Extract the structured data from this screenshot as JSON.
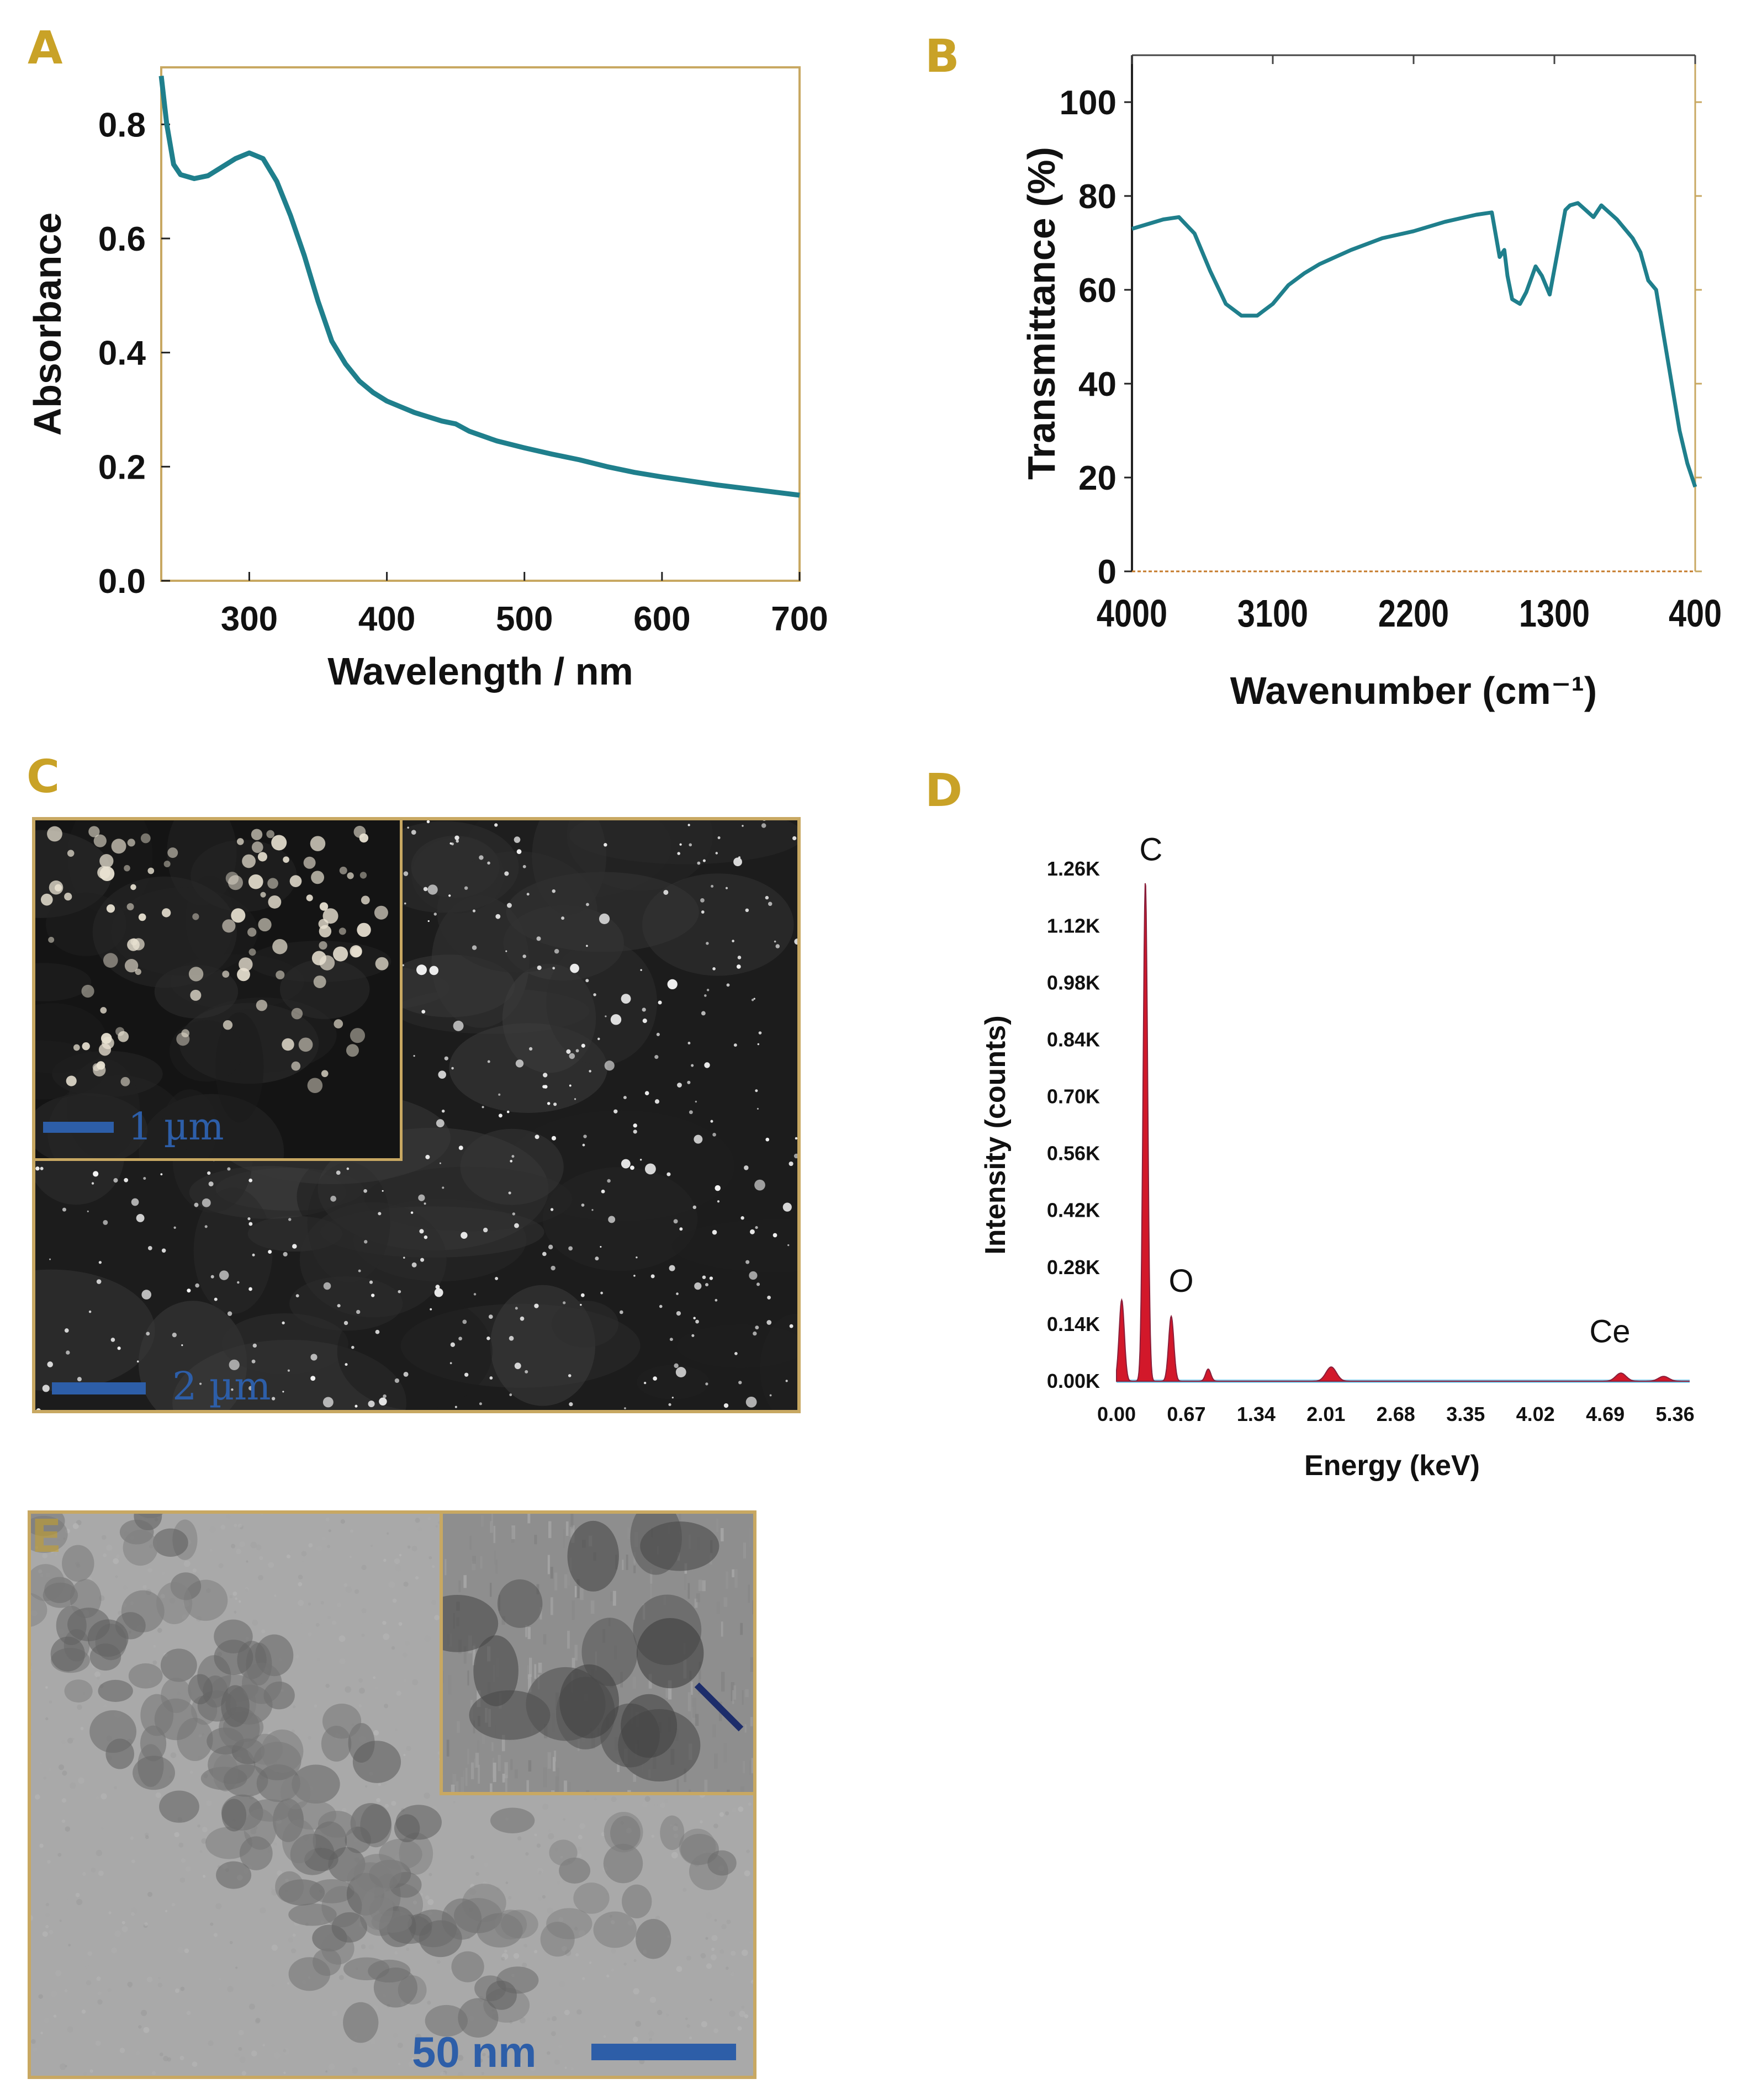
{
  "figure": {
    "panels": {
      "A": "A",
      "B": "B",
      "C": "C",
      "D": "D",
      "E": "E"
    },
    "colors": {
      "panel_label": "#c9a227",
      "frame": "#c8a862",
      "curve": "#1f7f8c",
      "scale_bar": "#2d5ea8",
      "eds_peak": "#d2182a",
      "eds_baseline": "#7ec8e8"
    }
  },
  "chart_data": [
    {
      "id": "A",
      "type": "line",
      "title": "",
      "xlabel": "Wavelength / nm",
      "ylabel": "Absorbance",
      "xlim": [
        236,
        700
      ],
      "ylim": [
        0.0,
        0.9
      ],
      "xticks": [
        300,
        400,
        500,
        600,
        700
      ],
      "yticks": [
        0.0,
        0.2,
        0.4,
        0.6,
        0.8
      ],
      "ytick_labels": [
        "0.0",
        "0.2",
        "0.4",
        "0.6",
        "0.8"
      ],
      "x": [
        236,
        240,
        245,
        250,
        260,
        270,
        280,
        290,
        300,
        310,
        320,
        330,
        340,
        350,
        360,
        370,
        380,
        390,
        400,
        420,
        440,
        450,
        460,
        480,
        500,
        520,
        540,
        560,
        580,
        600,
        620,
        640,
        660,
        680,
        700
      ],
      "y": [
        0.885,
        0.8,
        0.73,
        0.712,
        0.705,
        0.71,
        0.725,
        0.74,
        0.75,
        0.74,
        0.7,
        0.64,
        0.57,
        0.49,
        0.42,
        0.38,
        0.35,
        0.33,
        0.315,
        0.295,
        0.28,
        0.275,
        0.262,
        0.245,
        0.233,
        0.222,
        0.212,
        0.2,
        0.19,
        0.182,
        0.175,
        0.168,
        0.162,
        0.156,
        0.15
      ]
    },
    {
      "id": "B",
      "type": "line",
      "title": "",
      "xlabel": "Wavenumber (cm⁻¹)",
      "ylabel": "Transmittance (%)",
      "xlim": [
        4000,
        400
      ],
      "ylim": [
        0,
        110
      ],
      "xticks": [
        4000,
        3100,
        2200,
        1300,
        400
      ],
      "yticks": [
        0,
        20,
        40,
        60,
        80,
        100
      ],
      "x": [
        4000,
        3800,
        3700,
        3600,
        3500,
        3400,
        3300,
        3200,
        3100,
        3000,
        2900,
        2800,
        2600,
        2400,
        2200,
        2000,
        1800,
        1700,
        1650,
        1620,
        1600,
        1570,
        1520,
        1480,
        1420,
        1380,
        1330,
        1280,
        1230,
        1200,
        1150,
        1100,
        1050,
        1000,
        900,
        800,
        750,
        700,
        650,
        600,
        550,
        500,
        450,
        400
      ],
      "y": [
        73,
        75,
        75.5,
        72,
        64,
        57,
        54.5,
        54.5,
        57,
        61,
        63.5,
        65.5,
        68.5,
        71,
        72.5,
        74.5,
        76,
        76.5,
        67,
        68.5,
        63,
        58,
        57,
        59.5,
        65,
        63,
        59,
        68,
        77,
        78,
        78.5,
        77,
        75.5,
        78,
        75,
        71,
        68,
        62,
        60,
        50,
        40,
        30,
        23,
        18
      ]
    },
    {
      "id": "D",
      "type": "area",
      "title": "",
      "xlabel": "Energy (keV)",
      "ylabel": "Intensity (counts)",
      "xlim": [
        0.0,
        5.5
      ],
      "ylim": [
        0,
        1.32
      ],
      "xticks": [
        0.0,
        0.67,
        1.34,
        2.01,
        2.68,
        3.35,
        4.02,
        4.69,
        5.36
      ],
      "xtick_labels": [
        "0.00",
        "0.67",
        "1.34",
        "2.01",
        "2.68",
        "3.35",
        "4.02",
        "4.69",
        "5.36"
      ],
      "yticks": [
        0.0,
        0.14,
        0.28,
        0.42,
        0.56,
        0.7,
        0.84,
        0.98,
        1.12,
        1.26
      ],
      "ytick_labels": [
        "0.00K",
        "0.14K",
        "0.28K",
        "0.42K",
        "0.56K",
        "0.70K",
        "0.84K",
        "0.98K",
        "1.12K",
        "1.26K"
      ],
      "peaks": [
        {
          "label": "C",
          "energy": 0.277,
          "intensity": 1.23
        },
        {
          "label": "O",
          "energy": 0.525,
          "intensity": 0.16
        },
        {
          "label": "Ce",
          "energy": 4.84,
          "intensity": 0.02
        }
      ],
      "minor_peaks": [
        {
          "energy": 0.05,
          "intensity": 0.2
        },
        {
          "energy": 0.88,
          "intensity": 0.03
        },
        {
          "energy": 2.06,
          "intensity": 0.035
        },
        {
          "energy": 5.25,
          "intensity": 0.012
        }
      ]
    }
  ],
  "panel_C": {
    "inset_scale_label": "1 µm",
    "main_scale_label": "2 µm"
  },
  "panel_E": {
    "scale_label": "50 nm"
  }
}
